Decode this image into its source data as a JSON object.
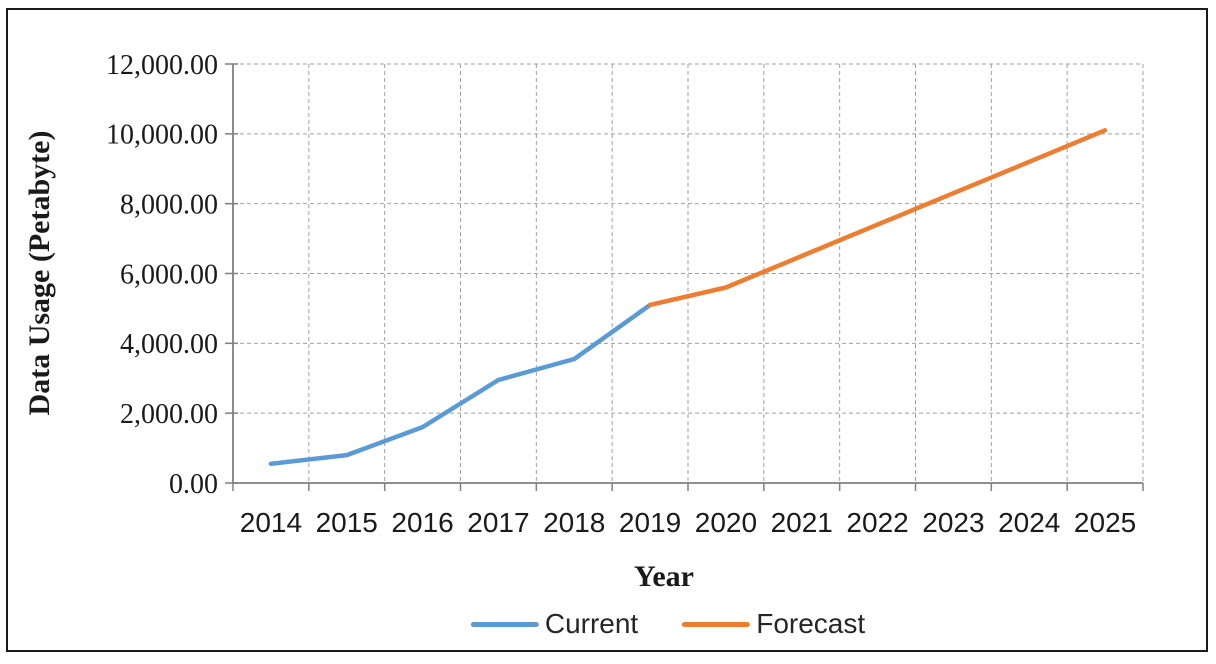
{
  "chart_data": {
    "type": "line",
    "title": "",
    "xlabel": "Year",
    "ylabel": "Data Usage (Petabyte)",
    "categories": [
      "2014",
      "2015",
      "2016",
      "2017",
      "2018",
      "2019",
      "2020",
      "2021",
      "2022",
      "2023",
      "2024",
      "2025"
    ],
    "ylim": [
      0,
      12000
    ],
    "y_tick_step": 2000,
    "y_ticks": [
      {
        "value": 0,
        "label": "0.00"
      },
      {
        "value": 2000,
        "label": "2,000.00"
      },
      {
        "value": 4000,
        "label": "4,000.00"
      },
      {
        "value": 6000,
        "label": "6,000.00"
      },
      {
        "value": 8000,
        "label": "8,000.00"
      },
      {
        "value": 10000,
        "label": "10,000.00"
      },
      {
        "value": 12000,
        "label": "12,000.00"
      }
    ],
    "grid": {
      "horizontal": true,
      "vertical": true,
      "style": "dashed"
    },
    "legend_position": "bottom",
    "series": [
      {
        "name": "Current",
        "color": "#5B9BD5",
        "categories": [
          "2014",
          "2015",
          "2016",
          "2017",
          "2018",
          "2019"
        ],
        "values": [
          550,
          800,
          1600,
          2950,
          3550,
          5100
        ]
      },
      {
        "name": "Forecast",
        "color": "#ED7D31",
        "categories": [
          "2019",
          "2020",
          "2021",
          "2022",
          "2023",
          "2024",
          "2025"
        ],
        "values": [
          5100,
          5600,
          6500,
          7400,
          8300,
          9200,
          10100
        ]
      }
    ],
    "colors": {
      "axis_line": "#808080",
      "gridline": "#a0a0a0",
      "tick_label": "#1a1a1a",
      "title_text": "#1a1a1a",
      "legend_text": "#262626",
      "frame_border": "#1a1a1a",
      "background": "#ffffff"
    }
  }
}
